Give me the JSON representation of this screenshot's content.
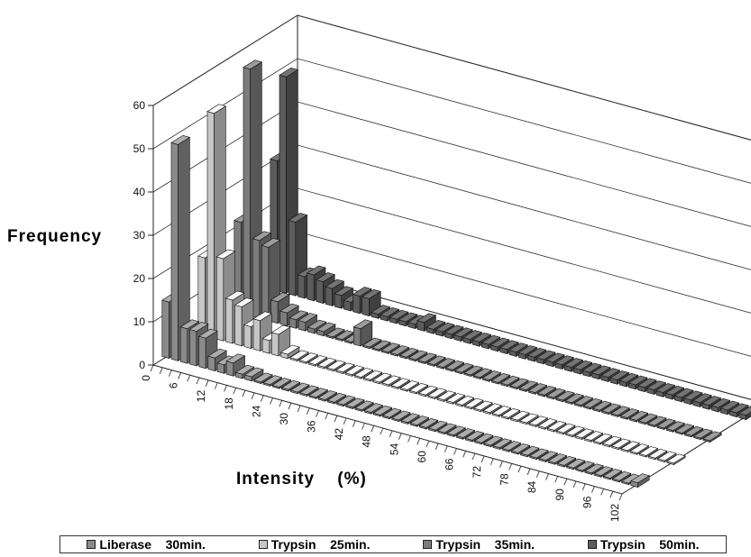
{
  "chart_data": {
    "type": "bar",
    "subtype": "3d-bar",
    "title": "",
    "xlabel": "Intensity    (%)",
    "ylabel": "Frequency",
    "ylim": [
      0,
      60
    ],
    "yticks": [
      0,
      10,
      20,
      30,
      40,
      50,
      60
    ],
    "xtick_labels": [
      "0",
      "6",
      "12",
      "18",
      "24",
      "30",
      "36",
      "42",
      "48",
      "54",
      "60",
      "66",
      "72",
      "78",
      "84",
      "90",
      "96",
      "102"
    ],
    "x": [
      0,
      2,
      4,
      6,
      8,
      10,
      12,
      14,
      16,
      18,
      20,
      22,
      24,
      26,
      28,
      30,
      32,
      34,
      36,
      38,
      40,
      42,
      44,
      46,
      48,
      50,
      52,
      54,
      56,
      58,
      60,
      62,
      64,
      66,
      68,
      70,
      72,
      74,
      76,
      78,
      80,
      82,
      84,
      86,
      88,
      90,
      92,
      94,
      96,
      98,
      100,
      102
    ],
    "series": [
      {
        "name": "Liberase    30min.",
        "color": "#8a8a8a",
        "values": [
          13,
          50,
          8,
          8,
          7,
          3,
          2,
          3,
          1,
          1,
          0,
          0,
          0,
          0,
          0,
          0,
          0,
          0,
          0,
          0,
          0,
          0,
          0,
          0,
          0,
          0,
          0,
          0,
          0,
          0,
          0,
          0,
          0,
          0,
          0,
          0,
          0,
          0,
          0,
          0,
          0,
          0,
          0,
          0,
          0,
          0,
          0,
          0,
          0,
          0,
          0,
          1
        ]
      },
      {
        "name": "Trypsin    25min.",
        "color": "#c6c6c6",
        "values": [
          18,
          52,
          19,
          10,
          9,
          5,
          7,
          3,
          5,
          1,
          0,
          0,
          0,
          0,
          0,
          0,
          0,
          0,
          0,
          0,
          0,
          0,
          0,
          0,
          0,
          0,
          0,
          0,
          0,
          0,
          0,
          0,
          0,
          0,
          0,
          0,
          0,
          0,
          0,
          0,
          0,
          0,
          0,
          0,
          0,
          0,
          0,
          0,
          0,
          0,
          0,
          0
        ]
      },
      {
        "name": "Trypsin    35min.",
        "color": "#7c7c7c",
        "values": [
          21,
          57,
          18,
          17,
          5,
          3,
          2,
          2,
          1,
          1,
          0,
          0,
          0,
          4,
          0,
          0,
          0,
          0,
          0,
          0,
          0,
          0,
          0,
          0,
          0,
          0,
          0,
          0,
          0,
          0,
          0,
          0,
          0,
          0,
          0,
          0,
          0,
          0,
          0,
          0,
          0,
          0,
          0,
          0,
          0,
          0,
          0,
          0,
          0,
          0,
          0,
          0
        ]
      },
      {
        "name": "Trypsin    50min.",
        "color": "#5c5c5c",
        "values": [
          30,
          50,
          17,
          5,
          6,
          5,
          4,
          3,
          2,
          4,
          4,
          1,
          1,
          1,
          1,
          1,
          2,
          1,
          1,
          1,
          1,
          1,
          1,
          1,
          1,
          1,
          1,
          1,
          1,
          1,
          1,
          1,
          1,
          1,
          1,
          1,
          1,
          1,
          1,
          1,
          1,
          1,
          1,
          1,
          1,
          1,
          1,
          1,
          1,
          1,
          1,
          1
        ]
      }
    ],
    "grid": true,
    "legend_position": "bottom"
  }
}
